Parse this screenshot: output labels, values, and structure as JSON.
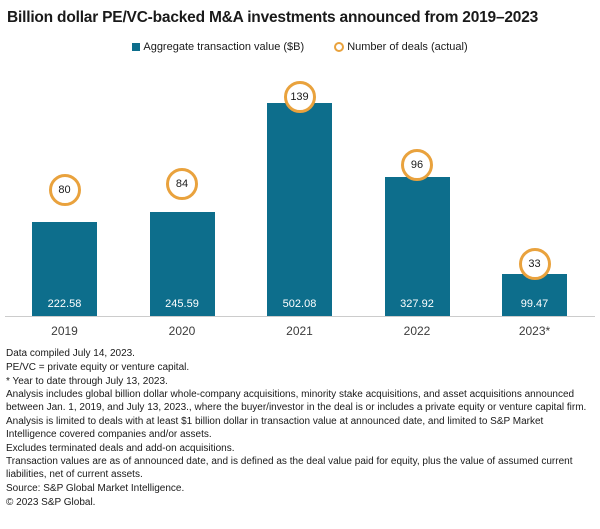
{
  "title": "Billion dollar PE/VC-backed M&A investments announced from 2019–2023",
  "legend": {
    "bars_label": "Aggregate transaction value ($B)",
    "deals_label": "Number of deals (actual)"
  },
  "colors": {
    "bar": "#0D6E8C",
    "marker_ring": "#E9A23D",
    "axis_line": "#CCCCCC",
    "value_label": "#FFFFFF",
    "text": "#1A1A1A",
    "category_label": "#3C3C3C"
  },
  "chart_data": {
    "type": "bar",
    "title": "Billion dollar PE/VC-backed M&A investments announced from 2019–2023",
    "categories": [
      "2019",
      "2020",
      "2021",
      "2022",
      "2023*"
    ],
    "series": [
      {
        "name": "Aggregate transaction value ($B)",
        "type": "bar",
        "axis": "left",
        "values": [
          222.58,
          245.59,
          502.08,
          327.92,
          99.47
        ]
      },
      {
        "name": "Number of deals (actual)",
        "type": "point",
        "axis": "right",
        "values": [
          80,
          84,
          139,
          96,
          33
        ]
      }
    ],
    "value_labels": [
      "222.58",
      "245.59",
      "502.08",
      "327.92",
      "99.47"
    ],
    "deal_labels": [
      "80",
      "84",
      "139",
      "96",
      "33"
    ],
    "ylim": [
      0,
      560
    ],
    "y2lim": [
      0,
      200
    ],
    "grid": false,
    "axes_hidden": true,
    "legend_position": "top",
    "value_label_position": "inside-bottom",
    "deal_marker": "white circle with orange ring above each bar"
  },
  "footnotes": [
    "Data compiled July 14, 2023.",
    "PE/VC = private equity or venture capital.",
    "* Year to date through July 13, 2023.",
    "Analysis includes global billion dollar whole-company acquisitions, minority stake acquisitions, and asset acquisitions announced between Jan. 1, 2019, and July 13, 2023., where the buyer/investor in the deal is or includes a private equity or venture capital firm.",
    "Analysis is limited to deals with at least $1 billion dollar in transaction value at announced date, and limited to S&P Market Intelligence covered companies and/or assets.",
    "Excludes terminated deals and add-on acquisitions.",
    "Transaction values are as of announced date, and is defined as the deal value paid for equity, plus the value of assumed current liabilities, net of current assets.",
    "Source: S&P Global Market Intelligence.",
    "© 2023 S&P Global."
  ]
}
